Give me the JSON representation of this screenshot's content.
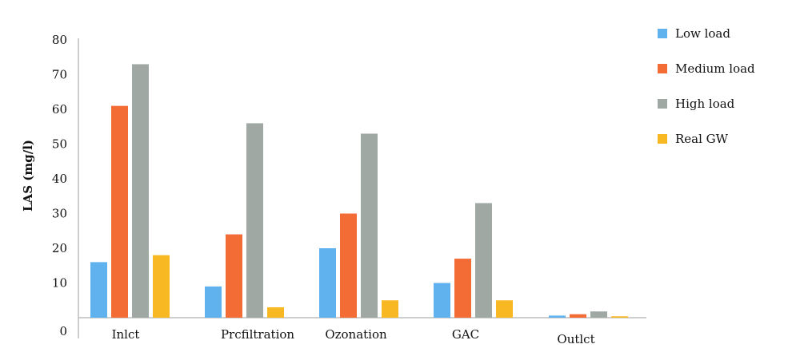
{
  "chart_data": {
    "type": "bar",
    "title": "",
    "xlabel": "",
    "ylabel": "LAS (mg/l)",
    "ylim": [
      0,
      80
    ],
    "yticks": [
      0,
      10,
      20,
      30,
      40,
      50,
      60,
      70,
      80
    ],
    "grid": false,
    "legend_position": "right",
    "categories": [
      "Inlct",
      "Prcfiltration",
      "Ozonation",
      "GAC",
      "Outlct"
    ],
    "series": [
      {
        "name": "Low load",
        "color": "#5fb2ee",
        "values": [
          16,
          9,
          20,
          10,
          0.6
        ]
      },
      {
        "name": "Medium load",
        "color": "#f36c35",
        "values": [
          61,
          24,
          30,
          17,
          1
        ]
      },
      {
        "name": "High load",
        "color": "#a0a8a3",
        "values": [
          73,
          56,
          53,
          33,
          1.8
        ]
      },
      {
        "name": "Real GW",
        "color": "#f8b823",
        "values": [
          18,
          3,
          5,
          5,
          0.4
        ]
      }
    ]
  }
}
